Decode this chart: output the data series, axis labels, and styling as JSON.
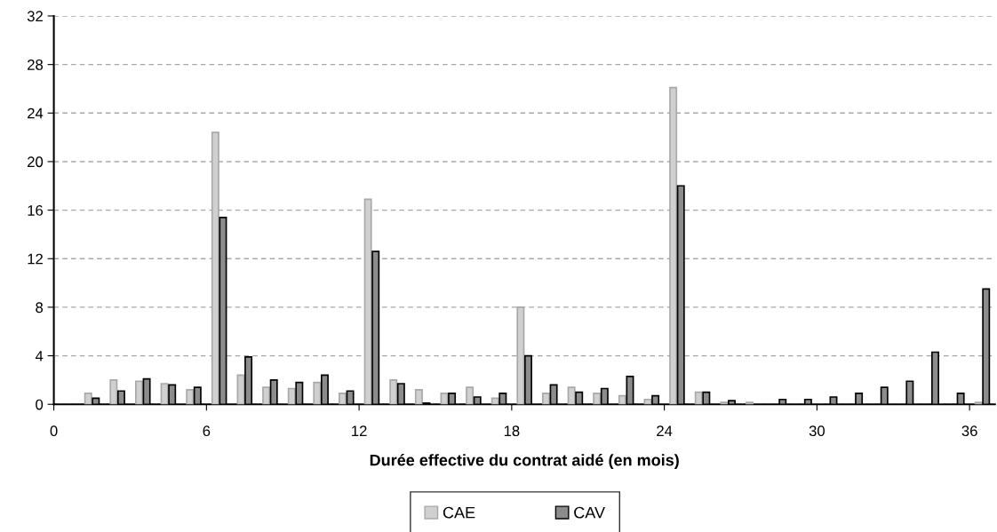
{
  "chart_data": {
    "type": "bar",
    "xlabel": "Durée effective du contrat aidé (en mois)",
    "x": [
      1.5,
      2.5,
      3.5,
      4.5,
      5.5,
      6.5,
      7.5,
      8.5,
      9.5,
      10.5,
      11.5,
      12.5,
      13.5,
      14.5,
      15.5,
      16.5,
      17.5,
      18.5,
      19.5,
      20.5,
      21.5,
      22.5,
      23.5,
      24.5,
      25.5,
      26.5,
      27.5,
      28.5,
      29.5,
      30.5,
      31.5,
      32.5,
      33.5,
      34.5,
      35.5,
      36.5
    ],
    "series": [
      {
        "name": "CAE",
        "color": "#d0d0d0",
        "values": [
          0.9,
          2.0,
          1.9,
          1.7,
          1.2,
          22.4,
          2.4,
          1.4,
          1.3,
          1.8,
          0.9,
          16.9,
          2.0,
          1.2,
          0.9,
          1.4,
          0.5,
          8.0,
          0.9,
          1.4,
          0.9,
          0.7,
          0.4,
          26.1,
          1.0,
          0.15,
          0.15,
          null,
          null,
          null,
          null,
          null,
          null,
          null,
          null,
          0.15
        ]
      },
      {
        "name": "CAV",
        "color": "#8c8c8c",
        "values": [
          0.5,
          1.1,
          2.1,
          1.6,
          1.4,
          15.4,
          3.9,
          2.0,
          1.8,
          2.4,
          1.1,
          12.6,
          1.7,
          0.1,
          0.9,
          0.6,
          0.9,
          4.0,
          1.6,
          1.0,
          1.3,
          2.3,
          0.7,
          18.0,
          1.0,
          0.3,
          null,
          0.4,
          0.4,
          0.6,
          0.9,
          1.4,
          1.9,
          4.3,
          0.9,
          9.5
        ]
      }
    ],
    "xlim": [
      0,
      37
    ],
    "xticks": [
      0,
      6,
      12,
      18,
      24,
      30,
      36
    ],
    "ylim": [
      0,
      32
    ],
    "yticks": [
      0,
      4,
      8,
      12,
      16,
      20,
      24,
      28,
      32
    ],
    "grid": "y",
    "legend": "bottom"
  }
}
